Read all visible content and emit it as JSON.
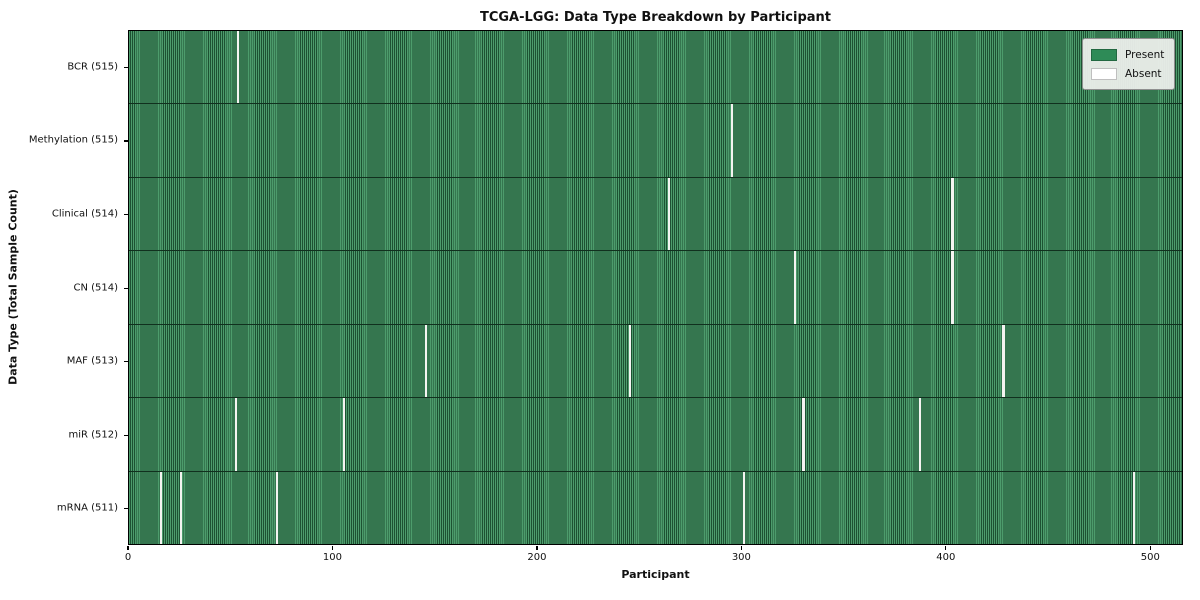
{
  "chart_data": {
    "type": "heatmap",
    "title": "TCGA-LGG: Data Type Breakdown by Participant",
    "xlabel": "Participant",
    "ylabel": "Data Type (Total Sample Count)",
    "x_ticks": [
      0,
      100,
      200,
      300,
      400,
      500
    ],
    "x_range": [
      0,
      516
    ],
    "participants_total": 516,
    "grid": false,
    "legend_position": "upper right",
    "present_color": "#2e8b57",
    "absent_color": "#ffffff",
    "legend_items": [
      {
        "label": "Present",
        "color": "#2e8b57"
      },
      {
        "label": "Absent",
        "color": "#ffffff"
      }
    ],
    "rows": [
      {
        "label": "BCR (515)",
        "data_type": "BCR",
        "total_samples": 515,
        "absent_participants": [
          53
        ]
      },
      {
        "label": "Methylation (515)",
        "data_type": "Methylation",
        "total_samples": 515,
        "absent_participants": [
          295
        ]
      },
      {
        "label": "Clinical (514)",
        "data_type": "Clinical",
        "total_samples": 514,
        "absent_participants": [
          264,
          403
        ]
      },
      {
        "label": "CN (514)",
        "data_type": "CN",
        "total_samples": 514,
        "absent_participants": [
          326,
          403
        ]
      },
      {
        "label": "MAF (513)",
        "data_type": "MAF",
        "total_samples": 513,
        "absent_participants": [
          145,
          245,
          428
        ]
      },
      {
        "label": "miR (512)",
        "data_type": "miR",
        "total_samples": 512,
        "absent_participants": [
          52,
          105,
          330,
          387
        ]
      },
      {
        "label": "mRNA (511)",
        "data_type": "mRNA",
        "total_samples": 511,
        "absent_participants": [
          15,
          25,
          72,
          301,
          492
        ]
      }
    ]
  }
}
